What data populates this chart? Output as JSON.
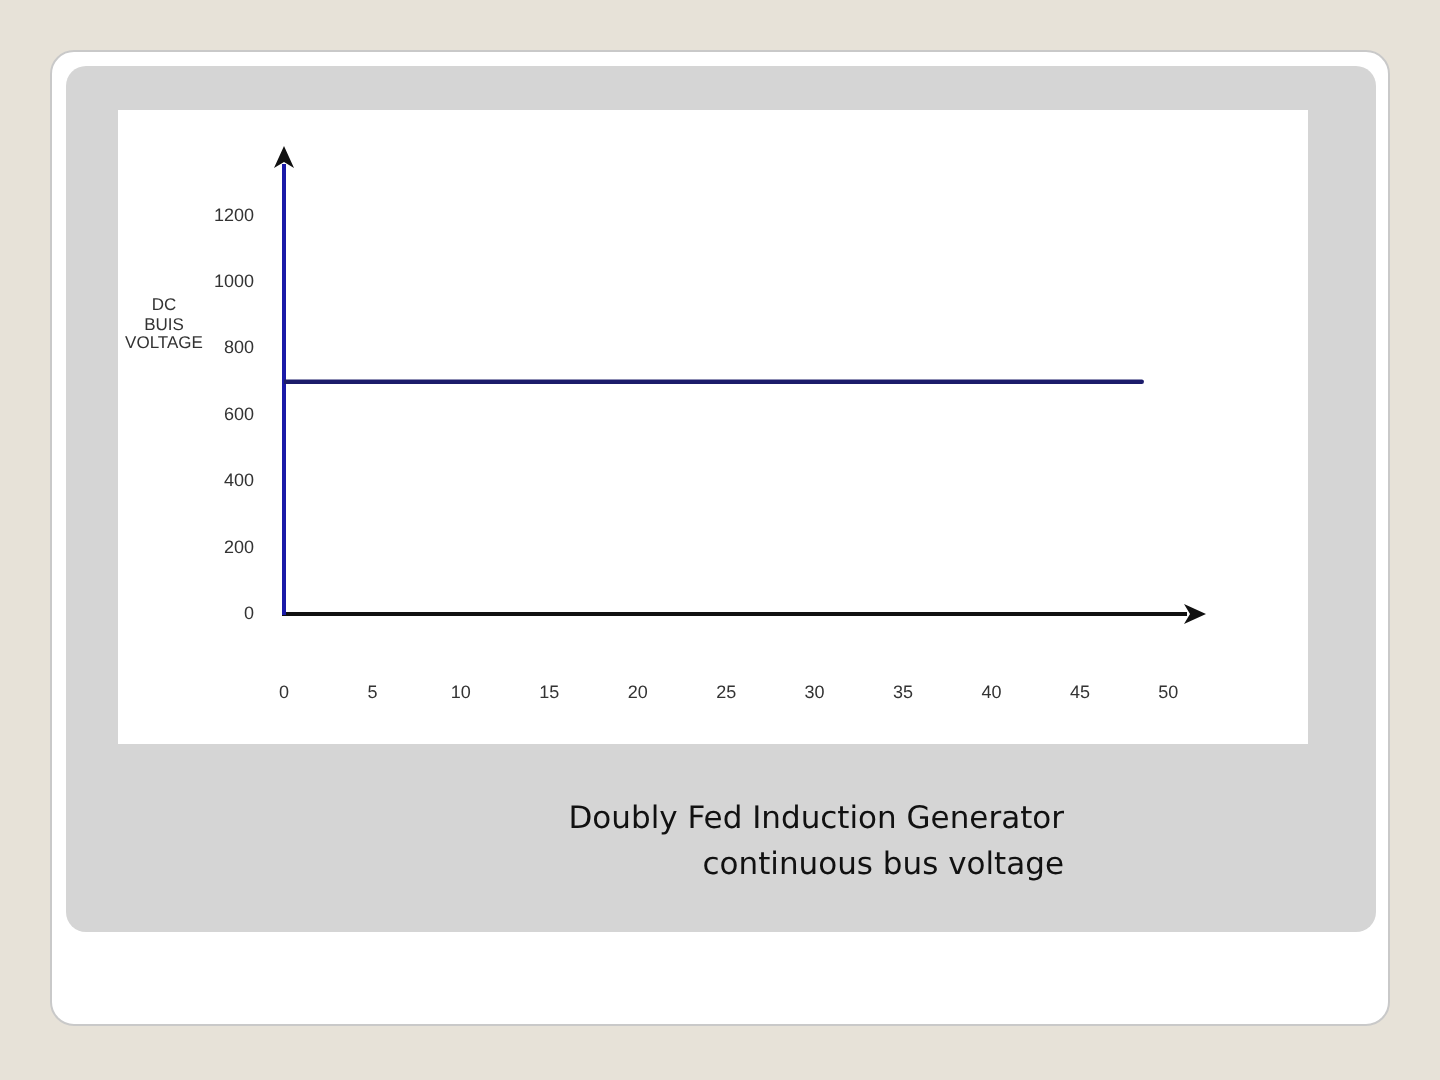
{
  "chart_data": {
    "type": "line",
    "ylabel": "DC BUIS VOLTAGE",
    "annotations": [
      "Doubly Fed Induction Generator",
      "continuous bus voltage"
    ],
    "x": [
      0,
      48.5
    ],
    "values": [
      700,
      700
    ],
    "color": "#1c1c6b",
    "xlim": [
      0,
      51
    ],
    "ylim": [
      0,
      1350
    ],
    "xticks": [
      0,
      5,
      10,
      15,
      20,
      25,
      30,
      35,
      40,
      45,
      50
    ],
    "yticks": [
      0,
      200,
      400,
      600,
      800,
      1000,
      1200
    ],
    "grid": false,
    "legend": false,
    "marker": "none",
    "line_style": "solid"
  }
}
